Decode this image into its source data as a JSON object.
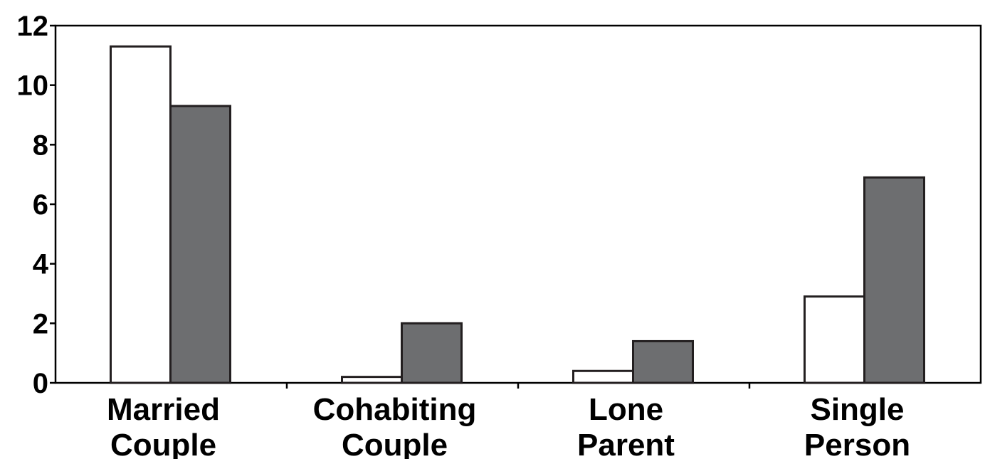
{
  "chart_data": {
    "type": "bar",
    "title": "",
    "xlabel": "",
    "ylabel": "",
    "categories": [
      [
        "Married",
        "Couple"
      ],
      [
        "Cohabiting",
        "Couple"
      ],
      [
        "Lone",
        "Parent"
      ],
      [
        "Single",
        "Person"
      ]
    ],
    "series": [
      {
        "values": [
          11.3,
          0.2,
          0.4,
          2.9
        ],
        "fill": "#ffffff"
      },
      {
        "values": [
          9.3,
          2.0,
          1.4,
          6.9
        ],
        "fill": "#6d6e70"
      }
    ],
    "ylim": [
      0,
      12
    ],
    "yticks": [
      0,
      2,
      4,
      6,
      8,
      10,
      12
    ],
    "ytick_labels": [
      "0",
      "2",
      "4",
      "6",
      "8",
      "10",
      "12"
    ],
    "grid": false,
    "legend": "none",
    "colors": {
      "axis": "#000000",
      "bar_outline": "#231f20"
    }
  }
}
